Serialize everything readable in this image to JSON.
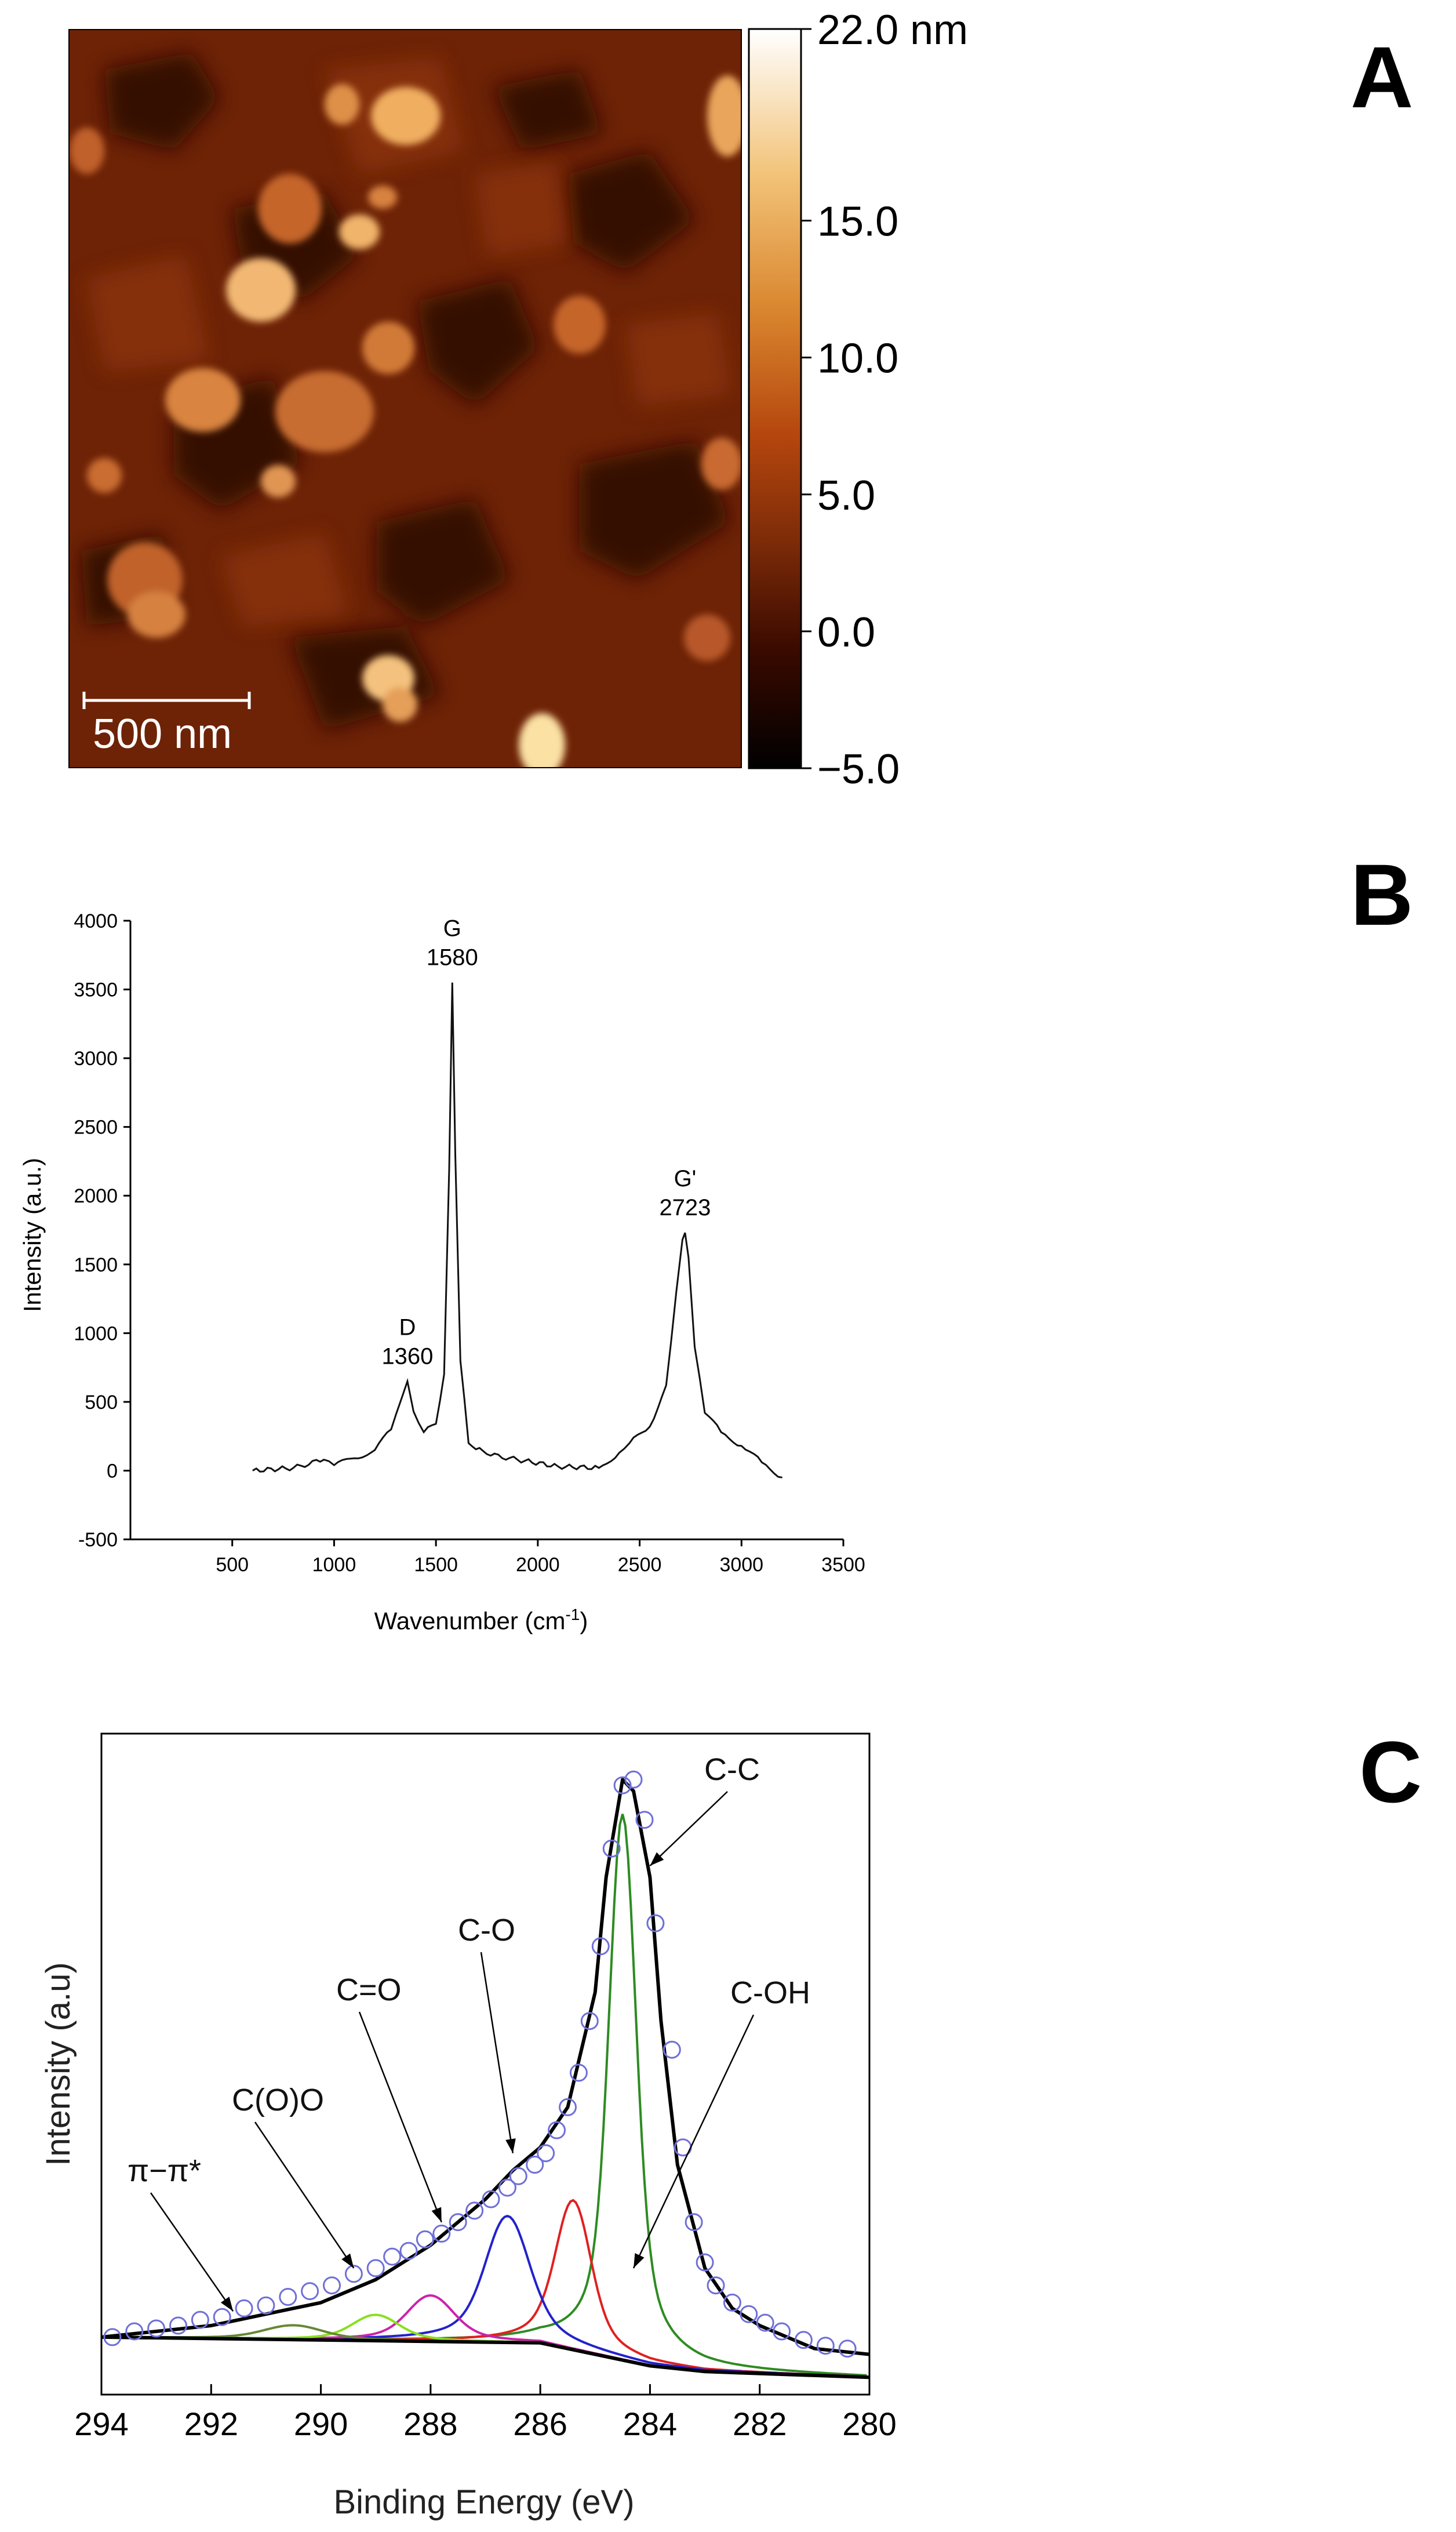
{
  "panels": {
    "a": "A",
    "b": "B",
    "c": "C"
  },
  "chart_data": [
    {
      "type": "heatmap",
      "panel": "A",
      "colorbar": {
        "range": [
          -5,
          22
        ],
        "ticks": [
          "22.0 nm",
          "15.0",
          "10.0",
          "5.0",
          "0.0",
          "−5.0"
        ],
        "colors": [
          "#000000",
          "#3a0a00",
          "#7a2a08",
          "#b5460e",
          "#d9862e",
          "#f2c277",
          "#ffffff"
        ]
      },
      "scale_bar": "500 nm"
    },
    {
      "type": "line",
      "panel": "B",
      "xlabel": "Wavenumber (cm",
      "xlabel_sup": "-1",
      "xlabel_end": ")",
      "ylabel": "Intensity (a.u.)",
      "xlim": [
        0,
        3500
      ],
      "ylim": [
        -500,
        4000
      ],
      "xticks": [
        "500",
        "1000",
        "1500",
        "2000",
        "2500",
        "3000",
        "3500"
      ],
      "yticks": [
        "-500",
        "0",
        "500",
        "1000",
        "1500",
        "2000",
        "2500",
        "3000",
        "3500",
        "4000"
      ],
      "x": [
        600,
        800,
        950,
        1000,
        1100,
        1200,
        1280,
        1330,
        1360,
        1390,
        1440,
        1500,
        1540,
        1565,
        1580,
        1595,
        1620,
        1660,
        1750,
        1900,
        2100,
        2300,
        2400,
        2450,
        2550,
        2630,
        2680,
        2710,
        2723,
        2740,
        2770,
        2820,
        2900,
        3000,
        3100,
        3200
      ],
      "y": [
        0,
        20,
        80,
        40,
        90,
        150,
        300,
        520,
        650,
        430,
        280,
        340,
        700,
        2200,
        3550,
        2300,
        800,
        200,
        120,
        80,
        30,
        20,
        130,
        200,
        320,
        620,
        1300,
        1680,
        1730,
        1550,
        900,
        420,
        280,
        180,
        60,
        -50
      ],
      "annotations": [
        {
          "name": "D",
          "value": "1360",
          "x": 1360,
          "y": 650
        },
        {
          "name": "G",
          "value": "1580",
          "x": 1580,
          "y": 3550
        },
        {
          "name": "G'",
          "value": "2723",
          "x": 2723,
          "y": 1730
        }
      ]
    },
    {
      "type": "line",
      "panel": "C",
      "xlabel": "Binding Energy (eV)",
      "ylabel": "Intensity (a.u)",
      "xlim": [
        294,
        280
      ],
      "ylim": [
        -0.1,
        1.05
      ],
      "xticks": [
        "294",
        "292",
        "290",
        "288",
        "286",
        "284",
        "282",
        "280"
      ],
      "baseline": {
        "x": [
          294,
          286,
          285,
          284,
          283,
          280
        ],
        "y": [
          0.0,
          -0.01,
          -0.03,
          -0.05,
          -0.06,
          -0.07
        ]
      },
      "envelope": {
        "x": [
          294,
          292,
          291,
          290,
          289,
          288.5,
          288,
          287.5,
          287,
          286.5,
          286,
          285.5,
          285,
          284.8,
          284.5,
          284.3,
          284,
          283.8,
          283.5,
          283,
          282.5,
          282,
          281,
          280
        ],
        "y": [
          0.0,
          0.02,
          0.04,
          0.06,
          0.1,
          0.13,
          0.16,
          0.2,
          0.24,
          0.29,
          0.33,
          0.4,
          0.6,
          0.8,
          0.97,
          0.95,
          0.8,
          0.55,
          0.3,
          0.12,
          0.05,
          0.02,
          -0.02,
          -0.03
        ]
      },
      "components": [
        {
          "label": "C-C",
          "color": "#2e8b22",
          "center": 284.5,
          "amp": 0.95,
          "width": 0.32
        },
        {
          "label": "C-OH",
          "color": "#e02020",
          "center": 285.4,
          "amp": 0.26,
          "width": 0.42
        },
        {
          "label": "C-O",
          "color": "#2222cc",
          "center": 286.6,
          "amp": 0.22,
          "width": 0.52
        },
        {
          "label": "C=O",
          "color": "#cc22aa",
          "center": 288.0,
          "amp": 0.08,
          "width": 0.55
        },
        {
          "label": "C(O)O",
          "color": "#88e020",
          "center": 289.0,
          "amp": 0.045,
          "width": 0.55
        },
        {
          "label": "π−π*",
          "color": "#668833",
          "center": 290.5,
          "amp": 0.025,
          "width": 0.7
        }
      ],
      "data_points": {
        "color": "#6f6fd8",
        "x": [
          293.8,
          293.4,
          293.0,
          292.6,
          292.2,
          291.8,
          291.4,
          291.0,
          290.6,
          290.2,
          289.8,
          289.4,
          289.0,
          288.7,
          288.4,
          288.1,
          287.8,
          287.5,
          287.2,
          286.9,
          286.6,
          286.4,
          286.1,
          285.9,
          285.7,
          285.5,
          285.3,
          285.1,
          284.9,
          284.7,
          284.5,
          284.3,
          284.1,
          283.9,
          283.6,
          283.4,
          283.2,
          283.0,
          282.8,
          282.5,
          282.2,
          281.9,
          281.6,
          281.2,
          280.8,
          280.4
        ],
        "y": [
          0.0,
          0.01,
          0.015,
          0.02,
          0.03,
          0.035,
          0.05,
          0.055,
          0.07,
          0.08,
          0.09,
          0.11,
          0.12,
          0.14,
          0.15,
          0.17,
          0.18,
          0.2,
          0.22,
          0.24,
          0.26,
          0.28,
          0.3,
          0.32,
          0.36,
          0.4,
          0.46,
          0.55,
          0.68,
          0.85,
          0.96,
          0.97,
          0.9,
          0.72,
          0.5,
          0.33,
          0.2,
          0.13,
          0.09,
          0.06,
          0.04,
          0.025,
          0.01,
          -0.005,
          -0.015,
          -0.02
        ]
      },
      "annotations": [
        {
          "text": "C-C",
          "target_x": 284.0,
          "target_y": 0.82
        },
        {
          "text": "C-OH",
          "target_x": 284.3,
          "target_y": 0.12
        },
        {
          "text": "C-O",
          "target_x": 286.5,
          "target_y": 0.32
        },
        {
          "text": "C=O",
          "target_x": 287.8,
          "target_y": 0.2
        },
        {
          "text": "C(O)O",
          "target_x": 289.4,
          "target_y": 0.12
        },
        {
          "text": "π−π*",
          "target_x": 291.6,
          "target_y": 0.045
        }
      ]
    }
  ]
}
